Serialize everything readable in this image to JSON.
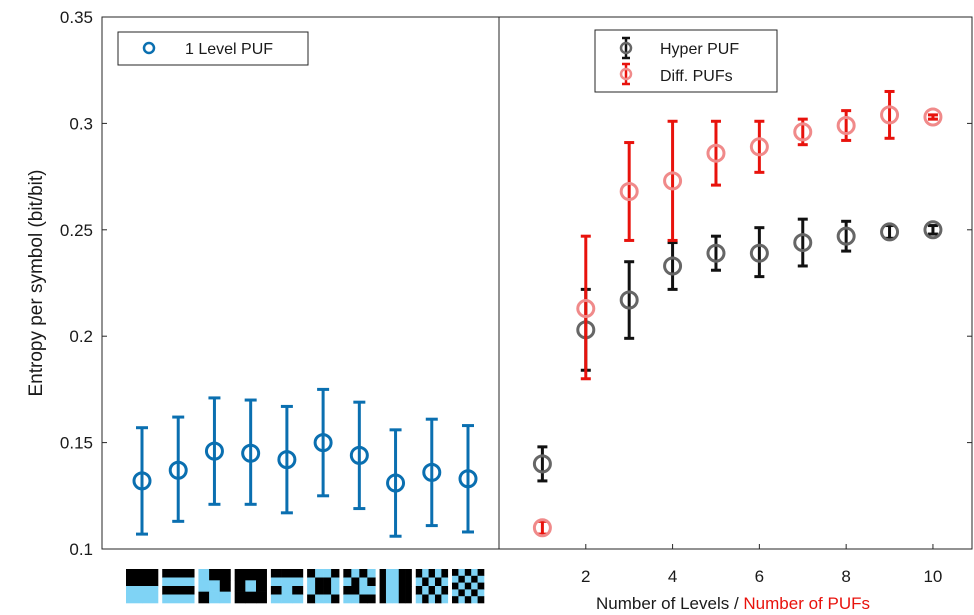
{
  "chart_data": [
    {
      "type": "scatter",
      "ylabel": "Entropy per symbol (bit/bit)",
      "ylim": [
        0.1,
        0.35
      ],
      "yticks": [
        "0.1",
        "0.15",
        "0.2",
        "0.25",
        "0.3",
        "0.35"
      ],
      "legend_position": "top-left",
      "series": [
        {
          "name": "1 Level PUF",
          "color": "#0a6fb0",
          "error_bars": true,
          "values": [
            0.132,
            0.137,
            0.146,
            0.145,
            0.142,
            0.15,
            0.144,
            0.131,
            0.136,
            0.133
          ],
          "lower": [
            0.107,
            0.113,
            0.121,
            0.121,
            0.117,
            0.125,
            0.119,
            0.106,
            0.111,
            0.108
          ],
          "upper": [
            0.157,
            0.162,
            0.171,
            0.17,
            0.167,
            0.175,
            0.169,
            0.156,
            0.161,
            0.158
          ]
        }
      ],
      "x_axis_glyphs": [
        "pattern-1",
        "pattern-2",
        "pattern-3",
        "pattern-4",
        "pattern-5",
        "pattern-6",
        "pattern-7",
        "pattern-8",
        "pattern-9",
        "pattern-10"
      ]
    },
    {
      "type": "scatter",
      "xlabel_part1": "Number of Levels / ",
      "xlabel_part2": "Number of PUFs",
      "xlabel_part2_color": "#e8120c",
      "xlim": [
        0,
        10.9
      ],
      "ylim": [
        0.1,
        0.35
      ],
      "xticks": [
        "2",
        "4",
        "6",
        "8",
        "10"
      ],
      "legend_position": "top-center",
      "series": [
        {
          "name": "Hyper PUF",
          "color": "#666666",
          "bar_color": "#111111",
          "x": [
            1,
            2,
            3,
            4,
            5,
            6,
            7,
            8,
            9,
            10
          ],
          "values": [
            0.14,
            0.203,
            0.217,
            0.233,
            0.239,
            0.239,
            0.244,
            0.247,
            0.249,
            0.25
          ],
          "lower": [
            0.132,
            0.184,
            0.199,
            0.222,
            0.231,
            0.228,
            0.233,
            0.24,
            0.246,
            0.248
          ],
          "upper": [
            0.148,
            0.222,
            0.235,
            0.244,
            0.247,
            0.251,
            0.255,
            0.254,
            0.252,
            0.252
          ]
        },
        {
          "name": "Diff. PUFs",
          "color": "#f08a8a",
          "bar_color": "#e8120c",
          "x": [
            1,
            2,
            3,
            4,
            5,
            6,
            7,
            8,
            9,
            10
          ],
          "values": [
            0.11,
            0.213,
            0.268,
            0.273,
            0.286,
            0.289,
            0.296,
            0.299,
            0.304,
            0.303
          ],
          "lower": [
            0.107,
            0.18,
            0.245,
            0.245,
            0.271,
            0.277,
            0.29,
            0.292,
            0.293,
            0.302
          ],
          "upper": [
            0.113,
            0.247,
            0.291,
            0.301,
            0.301,
            0.301,
            0.302,
            0.306,
            0.315,
            0.304
          ]
        }
      ]
    }
  ]
}
